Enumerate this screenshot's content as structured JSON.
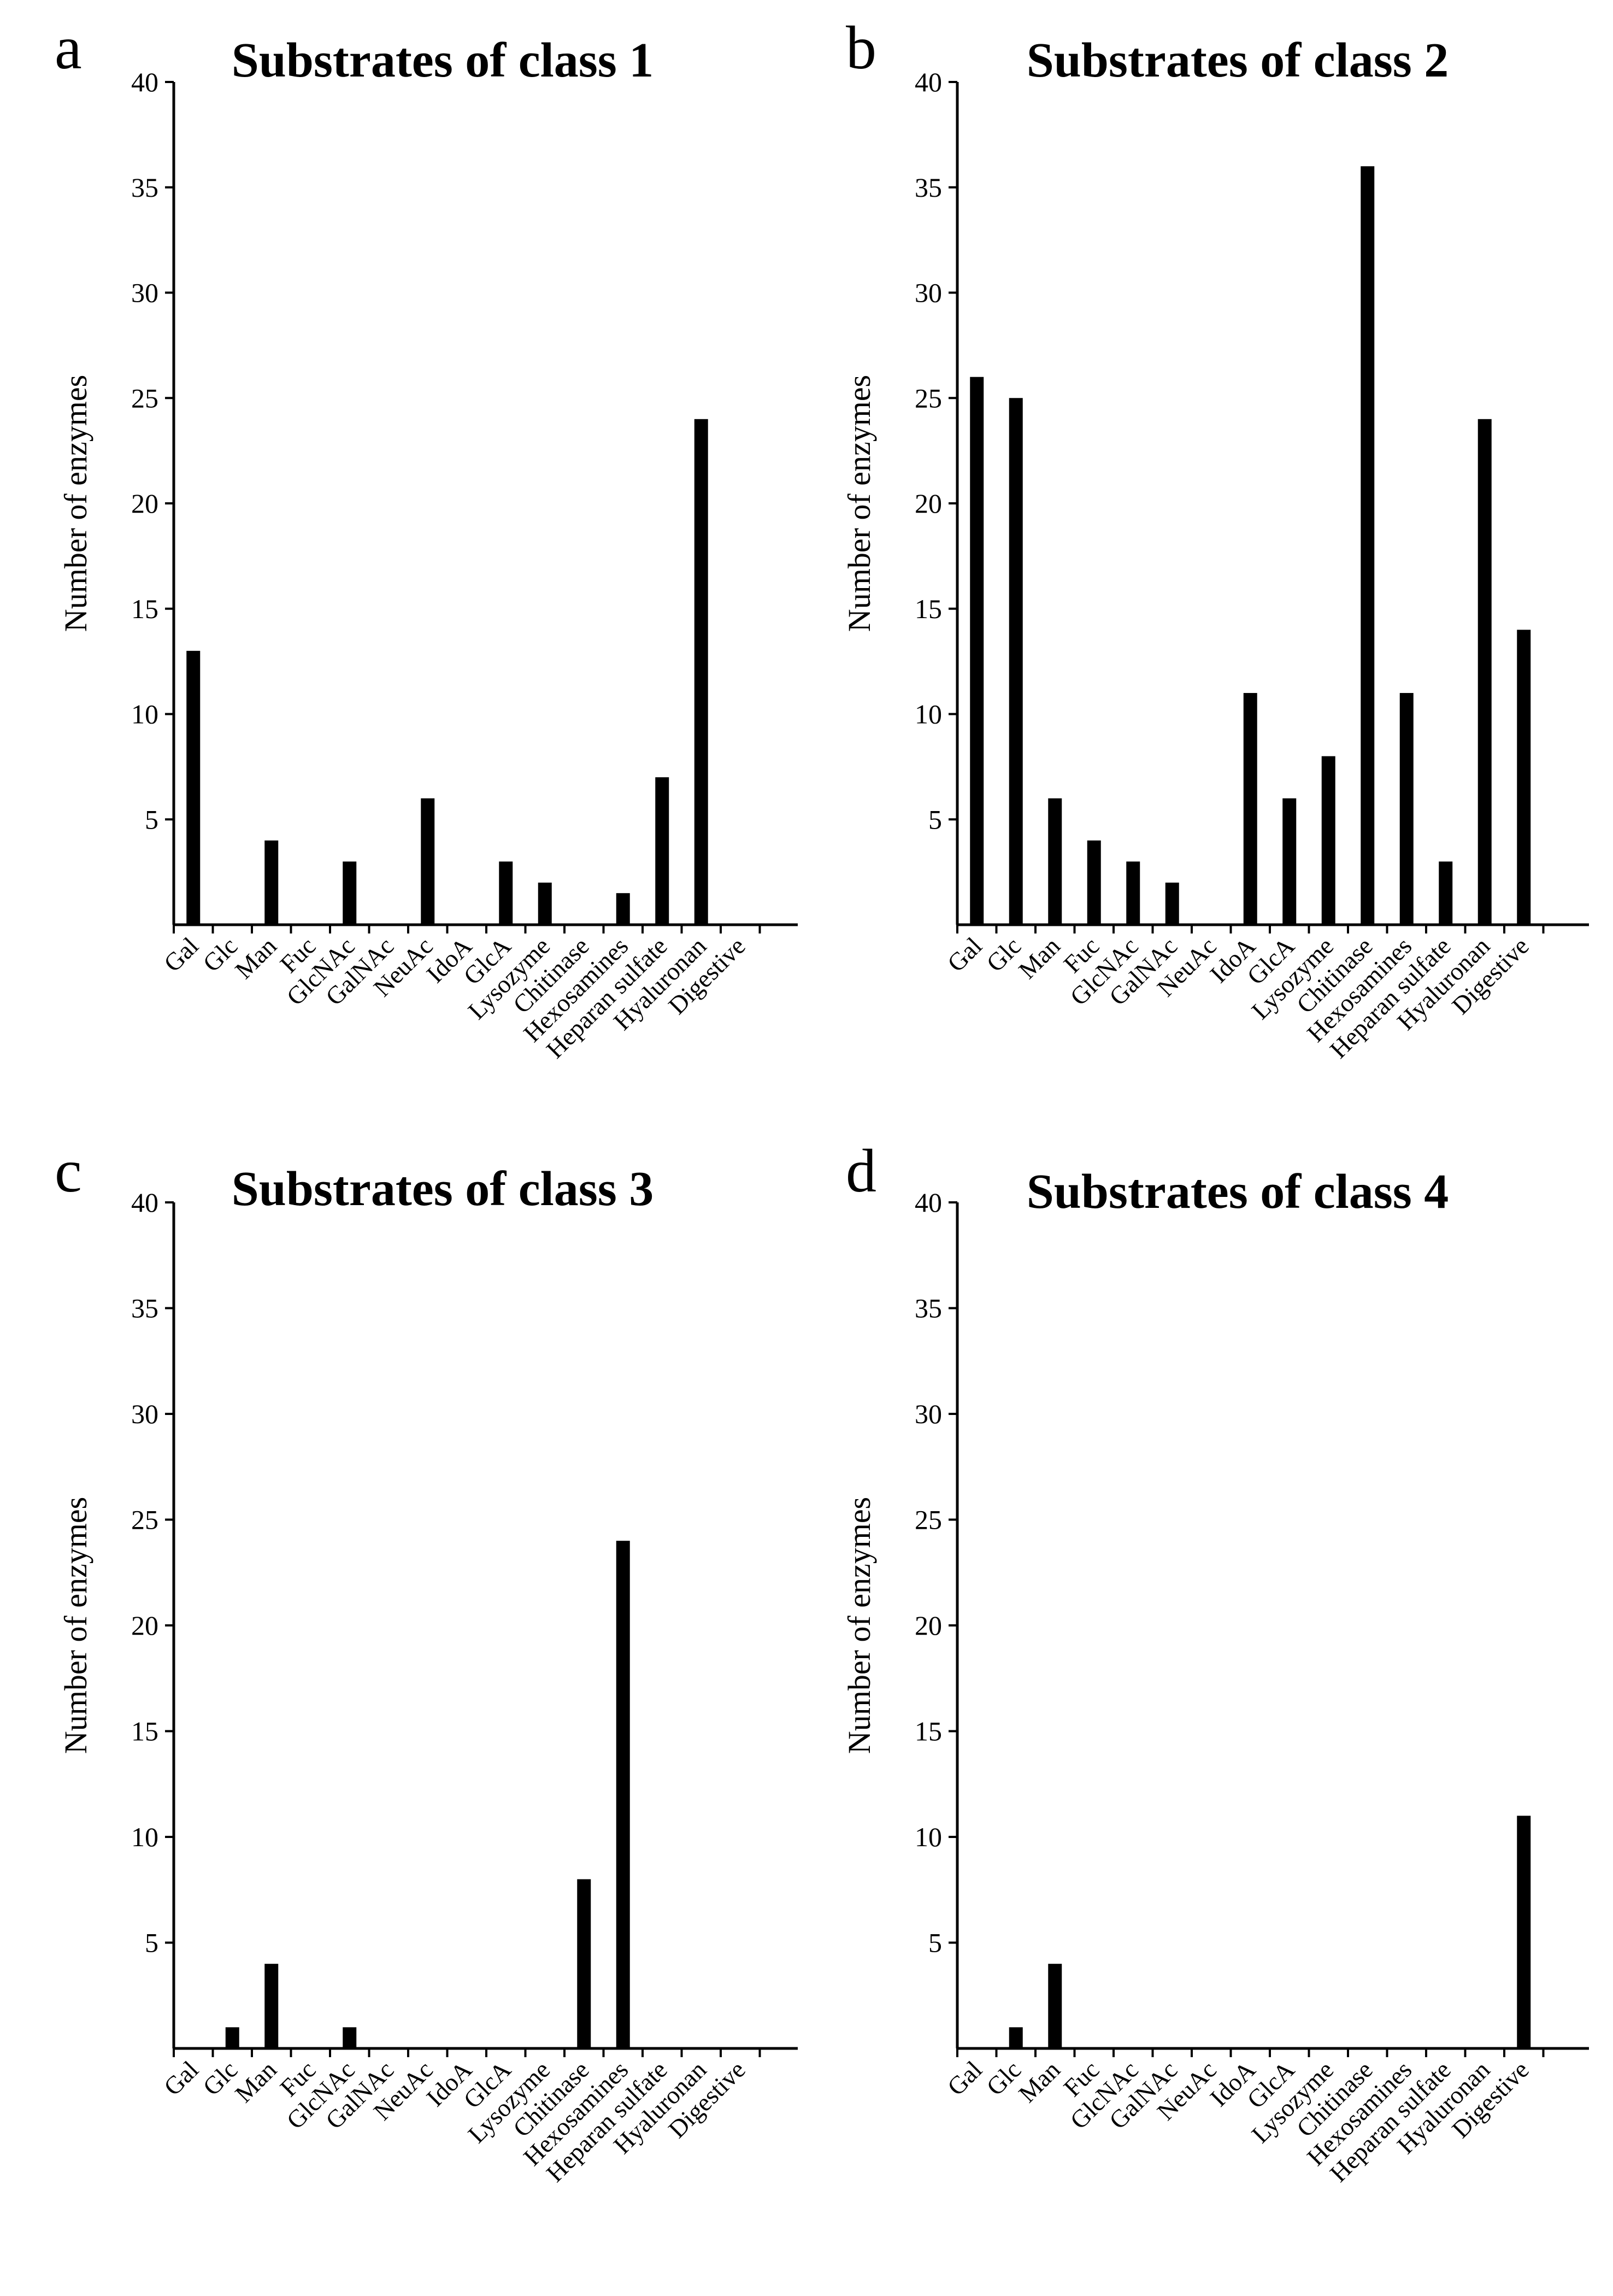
{
  "figure_panels": [
    "a",
    "b",
    "c",
    "d"
  ],
  "colors": {
    "bars": "#000000",
    "axes": "#000000",
    "background": "#ffffff"
  },
  "chart_data": [
    {
      "type": "bar",
      "panel": "a",
      "title": "Substrates of class 1",
      "xlabel": "",
      "ylabel": "Number of enzymes",
      "ylim": [
        0,
        40
      ],
      "yticks": [
        "5",
        "10",
        "15",
        "20",
        "25",
        "30",
        "35",
        "40"
      ],
      "categories": [
        "Gal",
        "Glc",
        "Man",
        "Fuc",
        "GlcNAc",
        "GalNAc",
        "NeuAc",
        "IdoA",
        "GlcA",
        "Lysozyme",
        "Chitinase",
        "Hexosamines",
        "Heparan sulfate",
        "Hyaluronan",
        "Digestive"
      ],
      "values": [
        13,
        0,
        4,
        0,
        3,
        0,
        6,
        0,
        3,
        2,
        0,
        1.5,
        7,
        24,
        0
      ]
    },
    {
      "type": "bar",
      "panel": "b",
      "title": "Substrates of class 2",
      "xlabel": "",
      "ylabel": "Number of enzymes",
      "ylim": [
        0,
        40
      ],
      "yticks": [
        "5",
        "10",
        "15",
        "20",
        "25",
        "30",
        "35",
        "40"
      ],
      "categories": [
        "Gal",
        "Glc",
        "Man",
        "Fuc",
        "GlcNAc",
        "GalNAc",
        "NeuAc",
        "IdoA",
        "GlcA",
        "Lysozyme",
        "Chitinase",
        "Hexosamines",
        "Heparan sulfate",
        "Hyaluronan",
        "Digestive"
      ],
      "values": [
        26,
        25,
        6,
        4,
        3,
        2,
        0,
        11,
        6,
        8,
        36,
        11,
        3,
        24,
        14
      ]
    },
    {
      "type": "bar",
      "panel": "c",
      "title": "Substrates of class 3",
      "xlabel": "",
      "ylabel": "Number of enzymes",
      "ylim": [
        0,
        40
      ],
      "yticks": [
        "5",
        "10",
        "15",
        "20",
        "25",
        "30",
        "35",
        "40"
      ],
      "categories": [
        "Gal",
        "Glc",
        "Man",
        "Fuc",
        "GlcNAc",
        "GalNAc",
        "NeuAc",
        "IdoA",
        "GlcA",
        "Lysozyme",
        "Chitinase",
        "Hexosamines",
        "Heparan sulfate",
        "Hyaluronan",
        "Digestive"
      ],
      "values": [
        0,
        1,
        4,
        0,
        1,
        0,
        0,
        0,
        0,
        0,
        8,
        24,
        0,
        0,
        0
      ]
    },
    {
      "type": "bar",
      "panel": "d",
      "title": "Substrates of class 4",
      "xlabel": "",
      "ylabel": "Number of enzymes",
      "ylim": [
        0,
        40
      ],
      "yticks": [
        "5",
        "10",
        "15",
        "20",
        "25",
        "30",
        "35",
        "40"
      ],
      "categories": [
        "Gal",
        "Glc",
        "Man",
        "Fuc",
        "GlcNAc",
        "GalNAc",
        "NeuAc",
        "IdoA",
        "GlcA",
        "Lysozyme",
        "Chitinase",
        "Hexosamines",
        "Heparan sulfate",
        "Hyaluronan",
        "Digestive"
      ],
      "values": [
        0,
        1,
        4,
        0,
        0,
        0,
        0,
        0,
        0,
        0,
        0,
        0,
        0,
        0,
        11
      ]
    }
  ]
}
